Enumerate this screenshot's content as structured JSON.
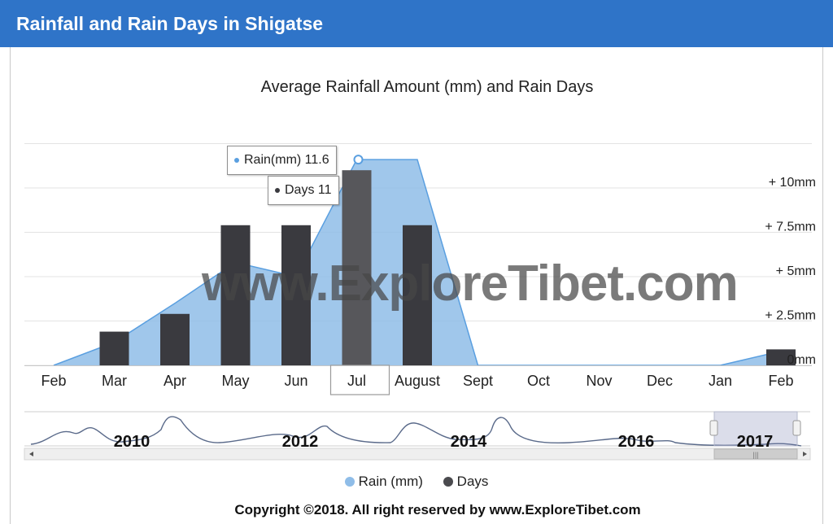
{
  "header": {
    "title": "Rainfall and Rain Days in Shigatse"
  },
  "colors": {
    "header_bg": "#2f74c8",
    "rain_area": "#8fbde8",
    "rain_line": "#5a9fe0",
    "days_bar": "#3a3a3f",
    "days_bar_highlight": "#57575b"
  },
  "watermark": "www.ExploreTibet.com",
  "chart_data": {
    "type": "bar",
    "title": "Average Rainfall Amount (mm) and Rain Days",
    "categories": [
      "Feb",
      "Mar",
      "Apr",
      "May",
      "Jun",
      "Jul",
      "August",
      "Sept",
      "Oct",
      "Nov",
      "Dec",
      "Jan",
      "Feb"
    ],
    "series": [
      {
        "name": "Rain (mm)",
        "type": "area",
        "values": [
          0,
          1.3,
          3.5,
          5.8,
          5.0,
          11.6,
          11.6,
          0,
          0,
          0,
          0,
          0,
          0.8
        ]
      },
      {
        "name": "Days",
        "type": "bar",
        "values": [
          0,
          1.9,
          2.9,
          7.9,
          7.9,
          11,
          7.9,
          0,
          0,
          0,
          0,
          0,
          0.9
        ]
      }
    ],
    "y_tick_labels": [
      "0mm",
      "+ 2.5mm",
      "+ 5mm",
      "+ 7.5mm",
      "+ 10mm"
    ],
    "y_tick_values": [
      0,
      2.5,
      5,
      7.5,
      10
    ],
    "ylim": [
      0,
      12.5
    ],
    "grid": true,
    "highlighted_category": "Jul",
    "tooltip": {
      "rain_label": "Rain(mm) 11.6",
      "days_label": "Days 11"
    },
    "legend_position": "bottom",
    "navigator": {
      "year_labels": [
        "2010",
        "2012",
        "2014",
        "2016",
        "2017"
      ]
    }
  },
  "legend": {
    "rain": "Rain (mm)",
    "days": "Days"
  },
  "footer": {
    "copyright": "Copyright ©2018.  All right reserved by www.ExploreTibet.com"
  }
}
